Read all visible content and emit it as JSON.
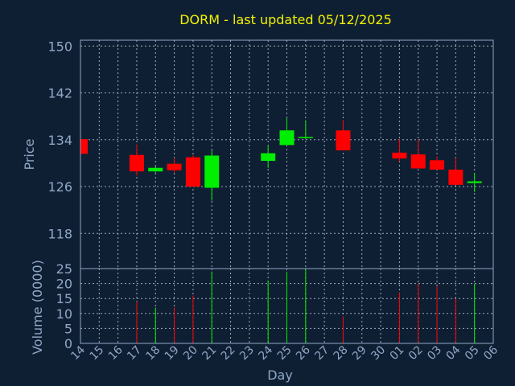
{
  "chart_data": {
    "type": "candlestick",
    "title": "DORM - last updated 05/12/2025",
    "xlabel": "Day",
    "ylabel": "Price",
    "volume_label": "Volume (0000)",
    "x_tick_labels": [
      "14",
      "15",
      "16",
      "17",
      "18",
      "19",
      "20",
      "21",
      "22",
      "23",
      "24",
      "25",
      "26",
      "27",
      "28",
      "29",
      "30",
      "01",
      "02",
      "03",
      "04",
      "05",
      "06"
    ],
    "price_ticks": [
      150,
      142,
      134,
      126,
      118
    ],
    "price_ylim": [
      112,
      151
    ],
    "volume_ticks": [
      25,
      20,
      15,
      10,
      5,
      0
    ],
    "volume_ylim": [
      0,
      25
    ],
    "grid": true,
    "colors": {
      "up": "#00ee00",
      "down": "#ff0000",
      "title": "#f2f200",
      "axis": "#8fa7c6",
      "background": "#0f1f33"
    },
    "candles": [
      {
        "day": "14",
        "open": 134.1,
        "high": 134.1,
        "low": 131.6,
        "close": 131.6,
        "volume": 0
      },
      {
        "day": "17",
        "open": 131.4,
        "high": 133.2,
        "low": 127.9,
        "close": 128.6,
        "volume": 14
      },
      {
        "day": "18",
        "open": 128.6,
        "high": 129.5,
        "low": 128.4,
        "close": 129.2,
        "volume": 12
      },
      {
        "day": "19",
        "open": 129.9,
        "high": 130.9,
        "low": 128.4,
        "close": 128.8,
        "volume": 12
      },
      {
        "day": "20",
        "open": 131.0,
        "high": 131.4,
        "low": 126.0,
        "close": 126.0,
        "volume": 16
      },
      {
        "day": "21",
        "open": 125.8,
        "high": 132.3,
        "low": 123.6,
        "close": 131.3,
        "volume": 24
      },
      {
        "day": "24",
        "open": 130.4,
        "high": 132.9,
        "low": 129.2,
        "close": 131.7,
        "volume": 21
      },
      {
        "day": "25",
        "open": 133.1,
        "high": 137.7,
        "low": 133.1,
        "close": 135.6,
        "volume": 24
      },
      {
        "day": "26",
        "open": 134.3,
        "high": 137.3,
        "low": 134.1,
        "close": 134.5,
        "volume": 25
      },
      {
        "day": "28",
        "open": 135.6,
        "high": 137.4,
        "low": 132.2,
        "close": 132.2,
        "volume": 9
      },
      {
        "day": "01",
        "open": 131.8,
        "high": 134.1,
        "low": 130.3,
        "close": 130.8,
        "volume": 17
      },
      {
        "day": "02",
        "open": 131.5,
        "high": 134.1,
        "low": 129.1,
        "close": 129.1,
        "volume": 20
      },
      {
        "day": "03",
        "open": 130.5,
        "high": 131.1,
        "low": 128.9,
        "close": 128.9,
        "volume": 19
      },
      {
        "day": "04",
        "open": 128.9,
        "high": 130.9,
        "low": 126.3,
        "close": 126.3,
        "volume": 15
      },
      {
        "day": "05",
        "open": 126.6,
        "high": 128.3,
        "low": 125.1,
        "close": 126.9,
        "volume": 20
      }
    ]
  }
}
